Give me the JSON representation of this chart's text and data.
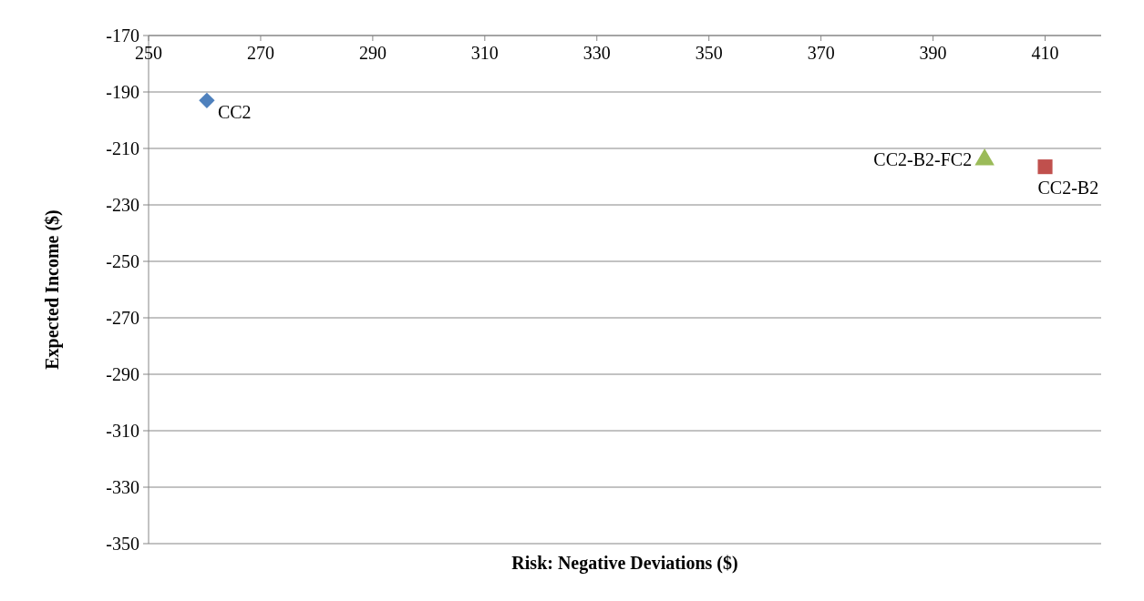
{
  "chart_data": {
    "type": "scatter",
    "xlabel": "Risk: Negative Deviations ($)",
    "ylabel": "Expected Income ($)",
    "xlim": [
      250,
      420
    ],
    "xticks": [
      250,
      270,
      290,
      310,
      330,
      350,
      370,
      390,
      410
    ],
    "ylim": [
      -350,
      -170
    ],
    "yticks": [
      -350,
      -330,
      -310,
      -290,
      -270,
      -250,
      -230,
      -210,
      -190,
      -170
    ],
    "grid": "y",
    "series": [
      {
        "name": "CC2",
        "color": "#4f81bd",
        "marker": "diamond",
        "x": [
          260.4
        ],
        "values": [
          -193
        ]
      },
      {
        "name": "CC2-B2",
        "color": "#c0504d",
        "marker": "square",
        "x": [
          410
        ],
        "values": [
          -216.5
        ]
      },
      {
        "name": "CC2-B2-FC2",
        "color": "#9bbb59",
        "marker": "triangle",
        "x": [
          399.2
        ],
        "values": [
          -214
        ]
      }
    ]
  }
}
